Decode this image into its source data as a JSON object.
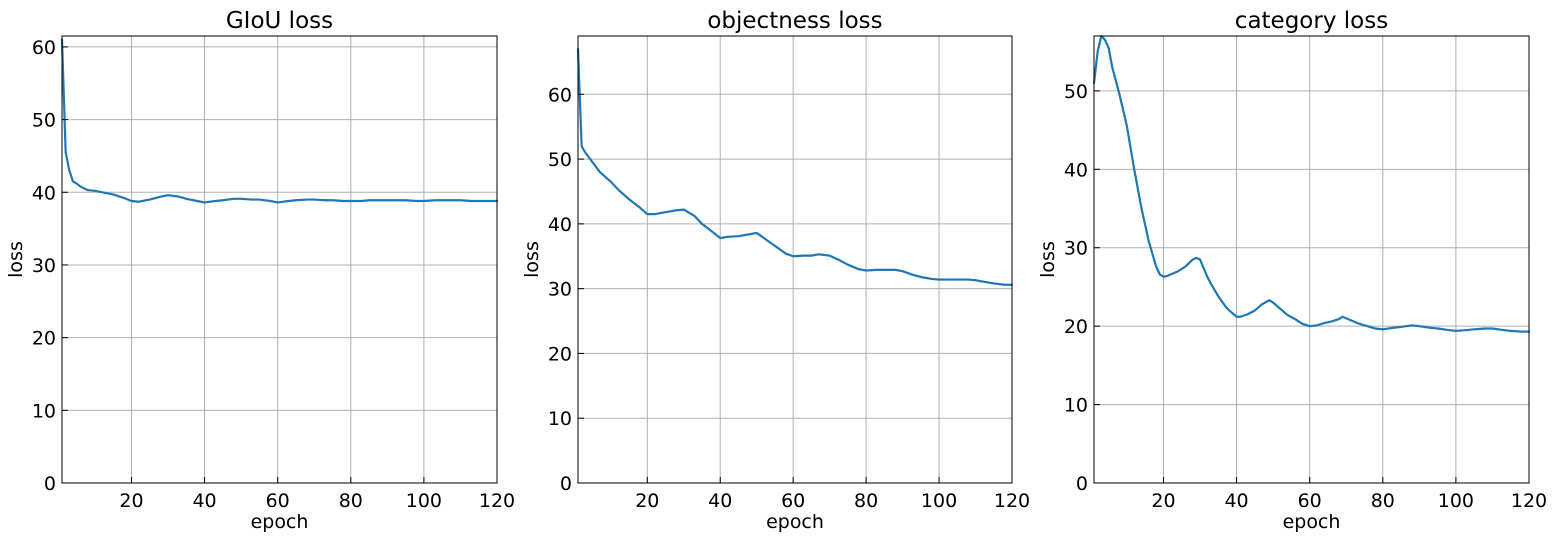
{
  "chart_data": [
    {
      "type": "line",
      "title": "GIoU loss",
      "xlabel": "epoch",
      "ylabel": "loss",
      "xlim": [
        1,
        120
      ],
      "ylim": [
        0,
        61.5
      ],
      "xticks": [
        20,
        40,
        60,
        80,
        100,
        120
      ],
      "yticks": [
        0,
        10,
        20,
        30,
        40,
        50,
        60
      ],
      "grid": true,
      "color": "#1f77b4",
      "series": [
        {
          "x": [
            1,
            2,
            3,
            4,
            5,
            6,
            8,
            10,
            12,
            15,
            18,
            20,
            22,
            25,
            28,
            30,
            33,
            35,
            38,
            40,
            43,
            45,
            48,
            50,
            53,
            55,
            58,
            60,
            63,
            65,
            68,
            70,
            73,
            75,
            78,
            80,
            83,
            85,
            88,
            90,
            93,
            95,
            98,
            100,
            103,
            105,
            108,
            110,
            113,
            115,
            118,
            120
          ],
          "y": [
            61,
            45.5,
            43,
            41.5,
            41.2,
            40.8,
            40.3,
            40.2,
            40,
            39.7,
            39.2,
            38.8,
            38.7,
            39,
            39.4,
            39.6,
            39.4,
            39.1,
            38.8,
            38.6,
            38.8,
            38.9,
            39.1,
            39.1,
            39,
            39,
            38.8,
            38.6,
            38.8,
            38.9,
            39,
            39,
            38.9,
            38.9,
            38.8,
            38.8,
            38.8,
            38.9,
            38.9,
            38.9,
            38.9,
            38.9,
            38.8,
            38.8,
            38.9,
            38.9,
            38.9,
            38.9,
            38.8,
            38.8,
            38.8,
            38.8
          ]
        }
      ]
    },
    {
      "type": "line",
      "title": "objectness loss",
      "xlabel": "epoch",
      "ylabel": "loss",
      "xlim": [
        1,
        120
      ],
      "ylim": [
        0,
        69
      ],
      "xticks": [
        20,
        40,
        60,
        80,
        100,
        120
      ],
      "yticks": [
        0,
        10,
        20,
        30,
        40,
        50,
        60
      ],
      "grid": true,
      "color": "#1f77b4",
      "series": [
        {
          "x": [
            1,
            2,
            3,
            5,
            7,
            10,
            12,
            15,
            18,
            20,
            22,
            25,
            28,
            30,
            33,
            35,
            38,
            40,
            42,
            45,
            48,
            50,
            53,
            55,
            58,
            60,
            63,
            65,
            67,
            70,
            73,
            75,
            78,
            80,
            83,
            85,
            88,
            90,
            93,
            95,
            98,
            100,
            103,
            105,
            108,
            110,
            113,
            115,
            118,
            120
          ],
          "y": [
            67,
            52,
            51,
            49.5,
            48,
            46.5,
            45.3,
            43.8,
            42.5,
            41.5,
            41.5,
            41.8,
            42.1,
            42.2,
            41.2,
            40,
            38.7,
            37.8,
            38,
            38.1,
            38.4,
            38.6,
            37.4,
            36.6,
            35.4,
            35,
            35.1,
            35.1,
            35.3,
            35.1,
            34.3,
            33.7,
            33,
            32.8,
            32.9,
            32.9,
            32.9,
            32.7,
            32.1,
            31.8,
            31.5,
            31.4,
            31.4,
            31.4,
            31.4,
            31.3,
            31,
            30.8,
            30.6,
            30.6
          ]
        }
      ]
    },
    {
      "type": "line",
      "title": "category loss",
      "xlabel": "epoch",
      "ylabel": "loss",
      "xlim": [
        1,
        120
      ],
      "ylim": [
        0,
        57
      ],
      "xticks": [
        20,
        40,
        60,
        80,
        100,
        120
      ],
      "yticks": [
        0,
        10,
        20,
        30,
        40,
        50
      ],
      "grid": true,
      "color": "#1f77b4",
      "series": [
        {
          "x": [
            1,
            2,
            3,
            4,
            5,
            6,
            8,
            10,
            12,
            14,
            16,
            18,
            19,
            20,
            21,
            22,
            24,
            26,
            28,
            29,
            30,
            32,
            33,
            35,
            37,
            38,
            40,
            41,
            43,
            45,
            47,
            49,
            50,
            52,
            54,
            56,
            58,
            60,
            62,
            64,
            66,
            68,
            69,
            71,
            73,
            75,
            78,
            80,
            83,
            85,
            88,
            90,
            93,
            95,
            98,
            100,
            103,
            105,
            108,
            110,
            113,
            115,
            118,
            120
          ],
          "y": [
            51,
            55,
            57,
            56.5,
            55.5,
            53,
            49.5,
            45.5,
            40,
            35,
            30.8,
            27.6,
            26.6,
            26.3,
            26.4,
            26.6,
            27,
            27.6,
            28.5,
            28.7,
            28.5,
            26.3,
            25.4,
            23.8,
            22.5,
            22,
            21.2,
            21.2,
            21.5,
            22,
            22.8,
            23.3,
            23,
            22.2,
            21.4,
            20.9,
            20.3,
            20,
            20.1,
            20.4,
            20.6,
            20.9,
            21.2,
            20.8,
            20.4,
            20.1,
            19.7,
            19.6,
            19.8,
            19.9,
            20.1,
            20,
            19.8,
            19.7,
            19.5,
            19.4,
            19.5,
            19.6,
            19.7,
            19.7,
            19.5,
            19.4,
            19.3,
            19.3
          ]
        }
      ]
    }
  ]
}
